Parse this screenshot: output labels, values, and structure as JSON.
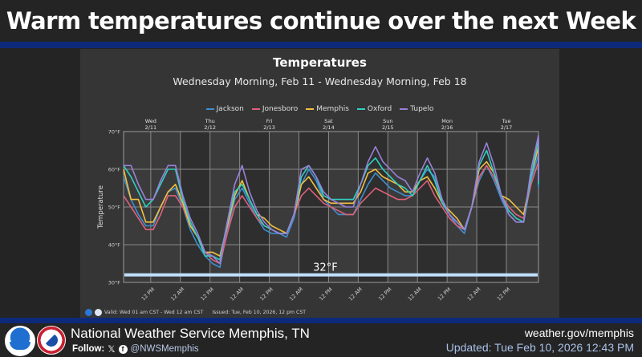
{
  "header": {
    "title": "Warm temperatures continue over the next Week"
  },
  "chart_data": {
    "type": "line",
    "title": "Temperatures",
    "subtitle": "Wednesday Morning, Feb 11 - Wednesday Morning, Feb 18",
    "xlabel": "",
    "ylabel": "Temperature",
    "ylim": [
      30,
      70
    ],
    "y_ticks": [
      "30°F",
      "40°F",
      "50°F",
      "60°F",
      "70°F"
    ],
    "y_tick_values": [
      30,
      40,
      50,
      60,
      70
    ],
    "x_start_hour": 1,
    "x_step_hours": 3,
    "x_end_hour": 169,
    "x_tick_labels": [
      "12 PM",
      "12 AM",
      "12 PM",
      "12 AM",
      "12 PM",
      "12 AM",
      "12 PM",
      "12 AM",
      "12 PM",
      "12 AM",
      "12 PM",
      "12 AM",
      "12 PM"
    ],
    "x_tick_hours": [
      12,
      24,
      36,
      48,
      60,
      72,
      84,
      96,
      108,
      120,
      132,
      144,
      156
    ],
    "day_labels": [
      {
        "day": "Wed",
        "date": "2/11",
        "hour": 12
      },
      {
        "day": "Thu",
        "date": "2/12",
        "hour": 36
      },
      {
        "day": "Fri",
        "date": "2/13",
        "hour": 60
      },
      {
        "day": "Sat",
        "date": "2/14",
        "hour": 84
      },
      {
        "day": "Sun",
        "date": "2/15",
        "hour": 108
      },
      {
        "day": "Mon",
        "date": "2/16",
        "hour": 132
      },
      {
        "day": "Tue",
        "date": "2/17",
        "hour": 156
      }
    ],
    "grid": true,
    "legend_position": "top-center",
    "reference_line": {
      "value": 32,
      "label": "32°F",
      "color": "#bfe0ff"
    },
    "series": [
      {
        "name": "Jackson",
        "color": "#3f8fd0",
        "values": [
          58,
          52,
          48,
          45,
          45,
          50,
          54,
          55,
          50,
          44,
          40,
          37,
          35,
          34,
          44,
          52,
          55,
          51,
          47,
          44,
          43,
          43,
          42,
          47,
          56,
          60,
          57,
          52,
          50,
          48,
          48,
          48,
          52,
          56,
          59,
          57,
          55,
          54,
          53,
          53,
          57,
          60,
          58,
          52,
          48,
          45,
          43,
          50,
          57,
          61,
          57,
          52,
          48,
          46,
          46,
          57,
          64,
          61,
          57,
          55
        ]
      },
      {
        "name": "Jonesboro",
        "color": "#e0607a",
        "values": [
          53,
          50,
          47,
          44,
          44,
          48,
          53,
          53,
          50,
          45,
          42,
          38,
          36,
          35,
          43,
          50,
          53,
          50,
          47,
          45,
          44,
          43,
          43,
          48,
          53,
          55,
          53,
          51,
          50,
          49,
          48,
          48,
          51,
          53,
          55,
          54,
          53,
          52,
          52,
          53,
          55,
          57,
          53,
          50,
          47,
          45,
          44,
          50,
          58,
          61,
          58,
          53,
          50,
          48,
          47,
          56,
          62,
          64,
          61,
          60
        ]
      },
      {
        "name": "Memphis",
        "color": "#f0c040",
        "values": [
          60,
          52,
          52,
          46,
          46,
          50,
          54,
          56,
          51,
          45,
          42,
          38,
          38,
          37,
          45,
          53,
          57,
          52,
          48,
          47,
          45,
          44,
          43,
          48,
          56,
          58,
          55,
          52,
          51,
          51,
          51,
          51,
          54,
          59,
          60,
          58,
          57,
          56,
          54,
          54,
          57,
          58,
          55,
          51,
          49,
          47,
          44,
          50,
          60,
          62,
          59,
          53,
          52,
          50,
          48,
          58,
          66,
          63,
          60,
          59
        ]
      },
      {
        "name": "Oxford",
        "color": "#30d0c0",
        "values": [
          61,
          58,
          54,
          50,
          52,
          56,
          60,
          60,
          52,
          46,
          42,
          37,
          37,
          36,
          46,
          54,
          56,
          52,
          48,
          45,
          44,
          43,
          43,
          48,
          58,
          61,
          58,
          53,
          52,
          52,
          52,
          52,
          56,
          61,
          63,
          60,
          58,
          56,
          55,
          53,
          57,
          61,
          57,
          51,
          48,
          46,
          44,
          50,
          61,
          65,
          59,
          53,
          49,
          47,
          46,
          58,
          68,
          64,
          60,
          56
        ]
      },
      {
        "name": "Tupelo",
        "color": "#9a80d8",
        "values": [
          61,
          61,
          56,
          52,
          52,
          57,
          61,
          61,
          53,
          47,
          43,
          38,
          37,
          35,
          46,
          56,
          61,
          54,
          49,
          46,
          44,
          43,
          43,
          48,
          60,
          61,
          58,
          54,
          52,
          51,
          50,
          50,
          56,
          62,
          66,
          62,
          60,
          58,
          57,
          54,
          59,
          63,
          59,
          52,
          48,
          46,
          44,
          50,
          62,
          67,
          61,
          53,
          48,
          46,
          46,
          60,
          69,
          64,
          59,
          57
        ]
      }
    ]
  },
  "valid_bar": {
    "valid": "Valid: Wed 01 am CST - Wed 12 am CST",
    "issued": "Issued: Tue, Feb 10, 2026, 12 pm CST"
  },
  "footer": {
    "office": "National Weather Service Memphis, TN",
    "follow_label": "Follow:",
    "x_icon": "𝕏",
    "facebook_icon": "f",
    "handle": "@NWSMemphis",
    "website": "weather.gov/memphis",
    "updated": "Updated: Tue Feb 10, 2026 12:43 PM"
  }
}
